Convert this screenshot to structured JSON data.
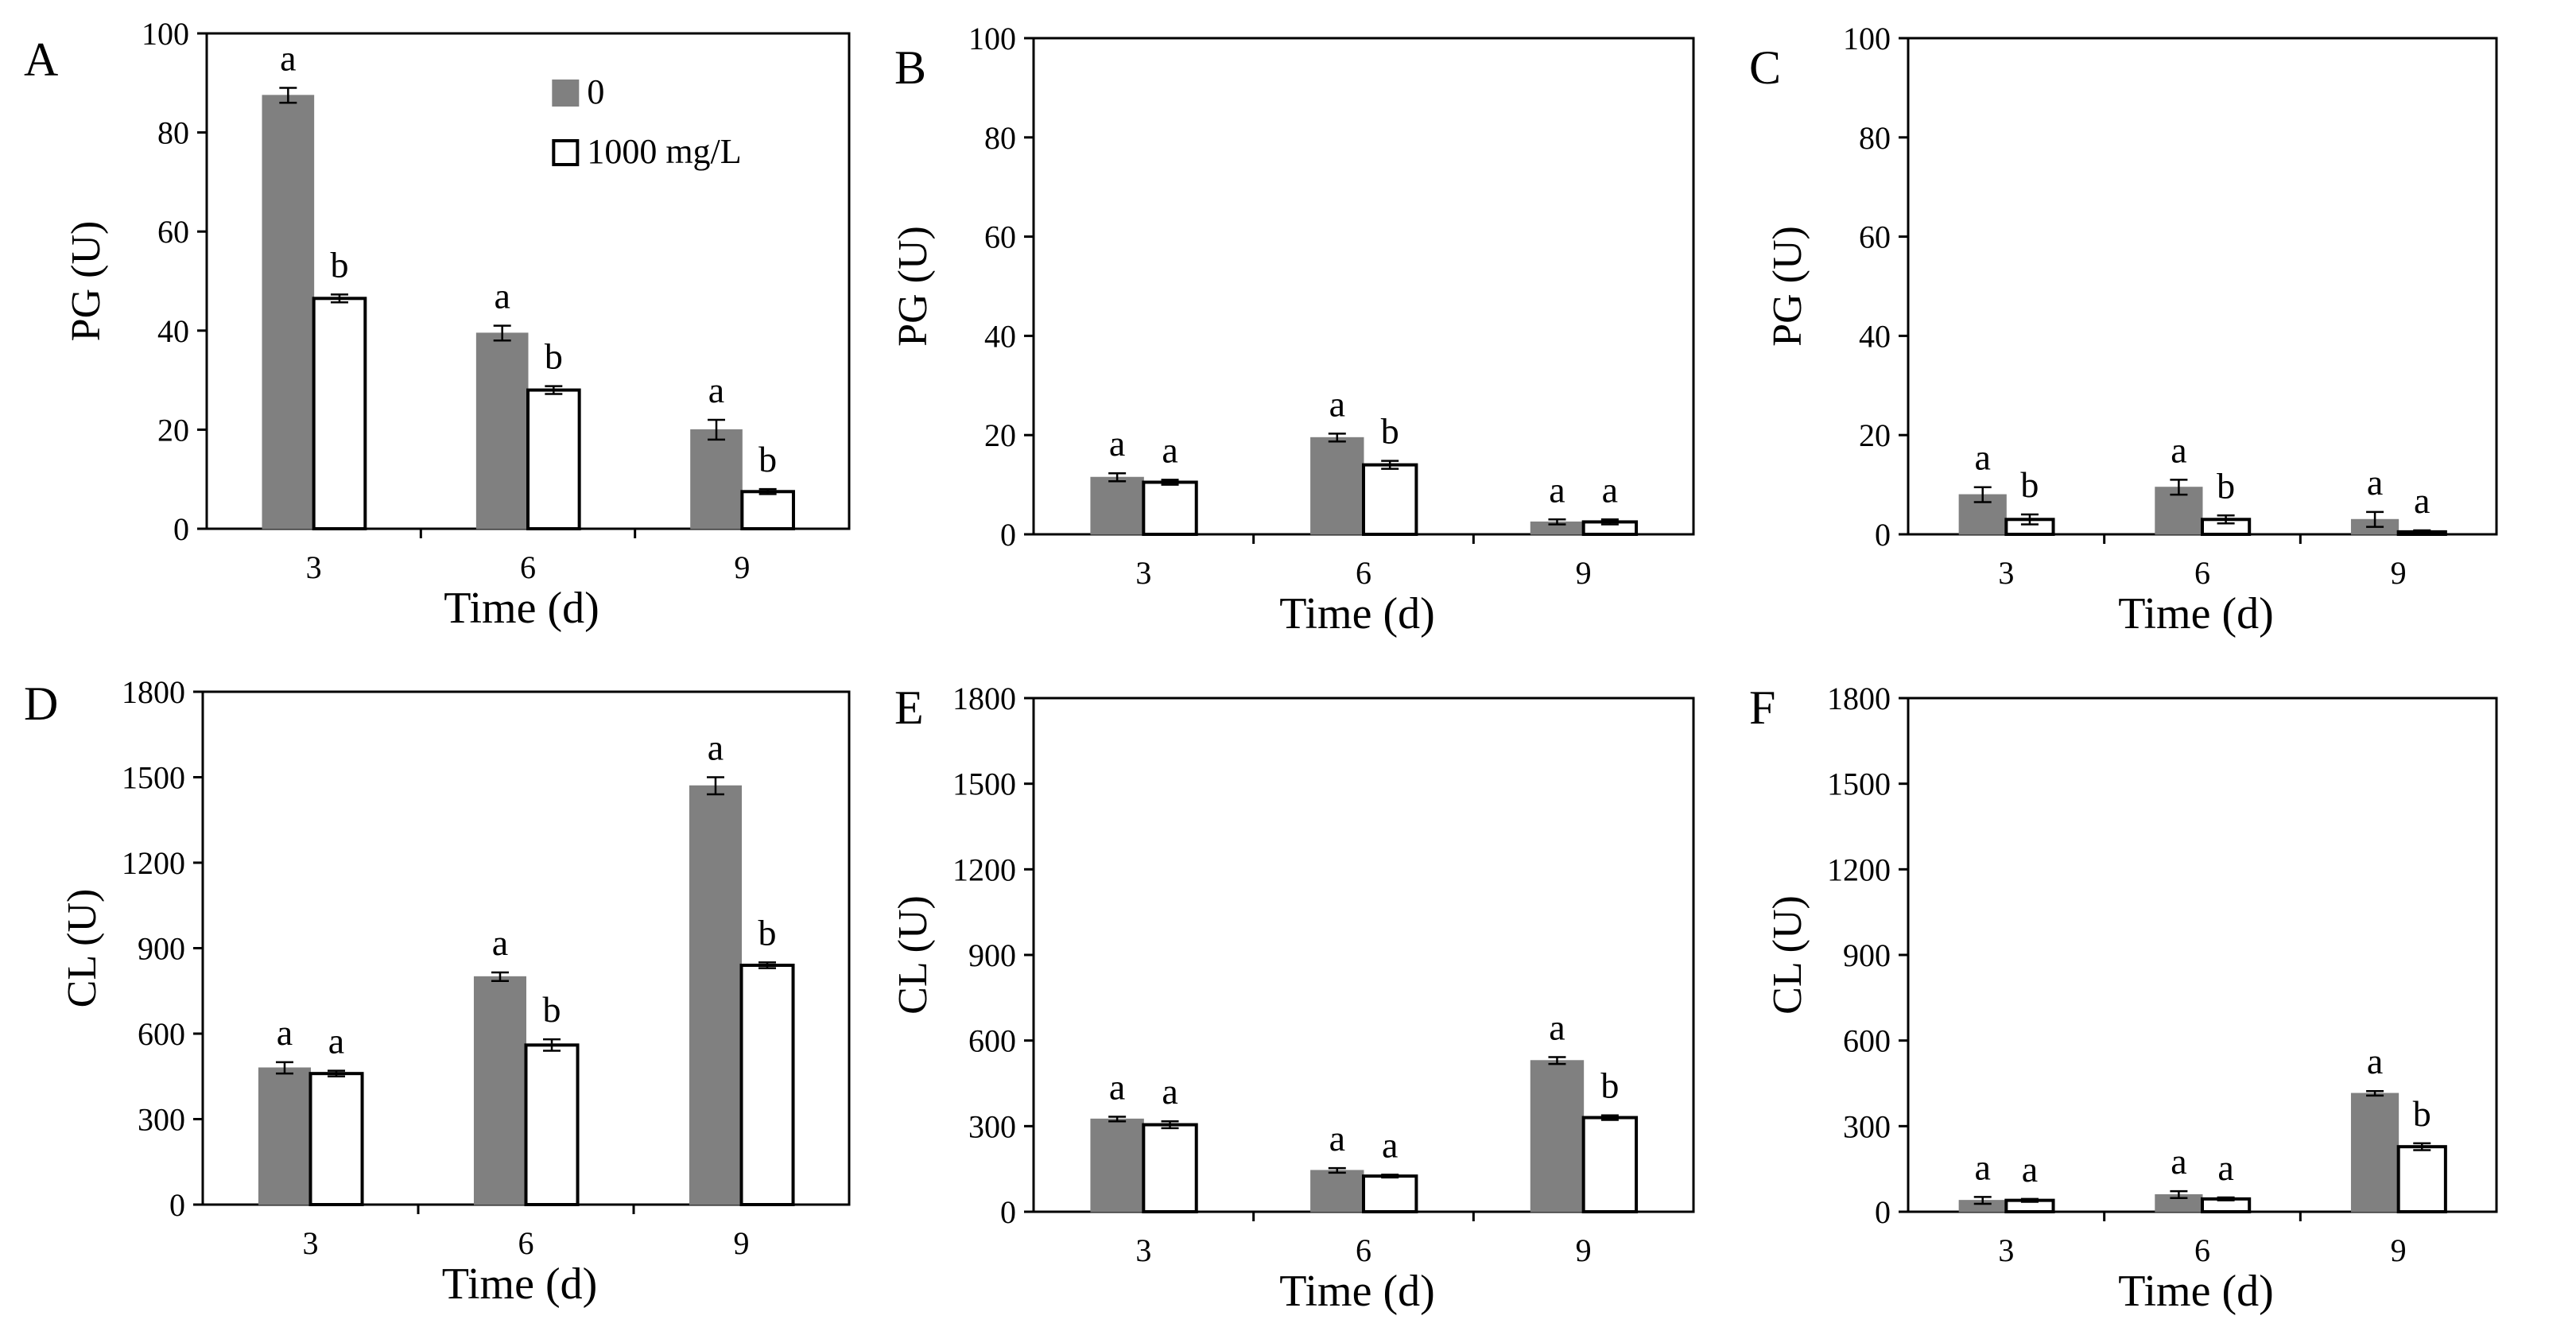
{
  "colors": {
    "control": "#808080",
    "treated": "#ffffff",
    "stroke": "#000000"
  },
  "chart_data": [
    {
      "type": "bar",
      "panel": "A",
      "xlabel": "Time (d)",
      "ylabel": "PG (U)",
      "categories": [
        "3",
        "6",
        "9"
      ],
      "ylim": [
        0,
        100
      ],
      "yticks": [
        "0",
        "20",
        "40",
        "60",
        "80",
        "100"
      ],
      "legend": {
        "placement": "top-right",
        "entries": [
          "0",
          "1000 mg/L"
        ]
      },
      "series": [
        {
          "name": "0",
          "values": [
            87.5,
            39.5,
            20
          ],
          "errors": [
            1.5,
            1.5,
            2
          ],
          "letters": [
            "a",
            "a",
            "a"
          ]
        },
        {
          "name": "1000 mg/L",
          "values": [
            46.5,
            28,
            7.5
          ],
          "errors": [
            0.8,
            0.8,
            0.5
          ],
          "letters": [
            "b",
            "b",
            "b"
          ]
        }
      ]
    },
    {
      "type": "bar",
      "panel": "B",
      "xlabel": "Time (d)",
      "ylabel": "PG (U)",
      "categories": [
        "3",
        "6",
        "9"
      ],
      "ylim": [
        0,
        100
      ],
      "yticks": [
        "0",
        "20",
        "40",
        "60",
        "80",
        "100"
      ],
      "series": [
        {
          "name": "0",
          "values": [
            11.5,
            19.5,
            2.5
          ],
          "errors": [
            0.8,
            0.8,
            0.5
          ],
          "letters": [
            "a",
            "a",
            "a"
          ]
        },
        {
          "name": "1000 mg/L",
          "values": [
            10.5,
            14,
            2.5
          ],
          "errors": [
            0.5,
            0.8,
            0.5
          ],
          "letters": [
            "a",
            "b",
            "a"
          ]
        }
      ]
    },
    {
      "type": "bar",
      "panel": "C",
      "xlabel": "Time (d)",
      "ylabel": "PG (U)",
      "categories": [
        "3",
        "6",
        "9"
      ],
      "ylim": [
        0,
        100
      ],
      "yticks": [
        "0",
        "20",
        "40",
        "60",
        "80",
        "100"
      ],
      "series": [
        {
          "name": "0",
          "values": [
            8,
            9.5,
            3
          ],
          "errors": [
            1.5,
            1.5,
            1.5
          ],
          "letters": [
            "a",
            "a",
            "a"
          ]
        },
        {
          "name": "1000 mg/L",
          "values": [
            3,
            3,
            0.5
          ],
          "errors": [
            1,
            0.8,
            0.3
          ],
          "letters": [
            "b",
            "b",
            "a"
          ]
        }
      ]
    },
    {
      "type": "bar",
      "panel": "D",
      "xlabel": "Time (d)",
      "ylabel": "CL (U)",
      "categories": [
        "3",
        "6",
        "9"
      ],
      "ylim": [
        0,
        1800
      ],
      "yticks": [
        "0",
        "300",
        "600",
        "900",
        "1200",
        "1500",
        "1800"
      ],
      "series": [
        {
          "name": "0",
          "values": [
            480,
            800,
            1470
          ],
          "errors": [
            20,
            15,
            30
          ],
          "letters": [
            "a",
            "a",
            "a"
          ]
        },
        {
          "name": "1000 mg/L",
          "values": [
            460,
            560,
            840
          ],
          "errors": [
            10,
            20,
            10
          ],
          "letters": [
            "a",
            "b",
            "b"
          ]
        }
      ]
    },
    {
      "type": "bar",
      "panel": "E",
      "xlabel": "Time (d)",
      "ylabel": "CL (U)",
      "categories": [
        "3",
        "6",
        "9"
      ],
      "ylim": [
        0,
        1800
      ],
      "yticks": [
        "0",
        "300",
        "600",
        "900",
        "1200",
        "1500",
        "1800"
      ],
      "series": [
        {
          "name": "0",
          "values": [
            325,
            145,
            530
          ],
          "errors": [
            8,
            8,
            12
          ],
          "letters": [
            "a",
            "a",
            "a"
          ]
        },
        {
          "name": "1000 mg/L",
          "values": [
            305,
            125,
            330
          ],
          "errors": [
            12,
            5,
            8
          ],
          "letters": [
            "a",
            "a",
            "b"
          ]
        }
      ]
    },
    {
      "type": "bar",
      "panel": "F",
      "xlabel": "Time (d)",
      "ylabel": "CL (U)",
      "categories": [
        "3",
        "6",
        "9"
      ],
      "ylim": [
        0,
        1800
      ],
      "yticks": [
        "0",
        "300",
        "600",
        "900",
        "1200",
        "1500",
        "1800"
      ],
      "series": [
        {
          "name": "0",
          "values": [
            40,
            60,
            415
          ],
          "errors": [
            12,
            12,
            8
          ],
          "letters": [
            "a",
            "a",
            "a"
          ]
        },
        {
          "name": "1000 mg/L",
          "values": [
            40,
            45,
            228
          ],
          "errors": [
            5,
            5,
            12
          ],
          "letters": [
            "a",
            "a",
            "b"
          ]
        }
      ]
    }
  ]
}
